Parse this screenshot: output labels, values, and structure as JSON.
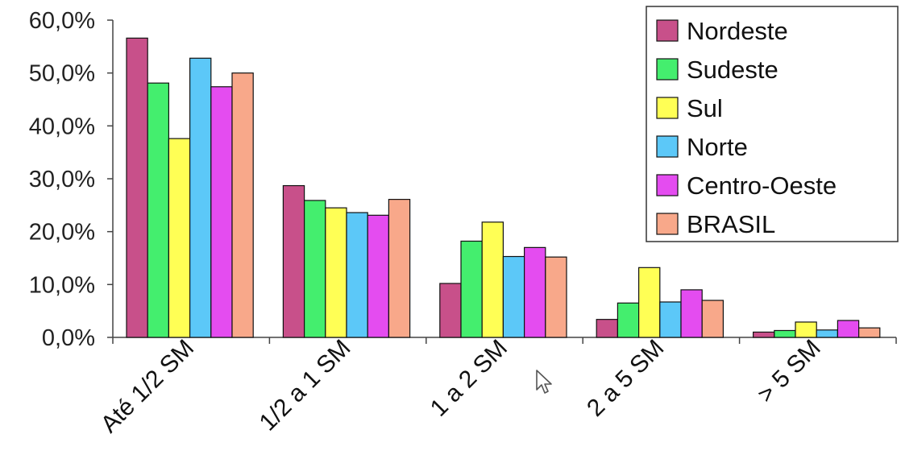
{
  "chart_data": {
    "type": "bar",
    "categories": [
      "Até 1/2 SM",
      "1/2 a 1 SM",
      "1 a 2 SM",
      "2 a 5 SM",
      "> 5 SM"
    ],
    "series": [
      {
        "name": "Nordeste",
        "color": "#c8508a",
        "values": [
          56.6,
          28.7,
          10.2,
          3.4,
          1.0
        ]
      },
      {
        "name": "Sudeste",
        "color": "#44ee6e",
        "values": [
          48.1,
          25.9,
          18.2,
          6.5,
          1.3
        ]
      },
      {
        "name": "Sul",
        "color": "#ffff55",
        "values": [
          37.6,
          24.5,
          21.8,
          13.2,
          2.9
        ]
      },
      {
        "name": "Norte",
        "color": "#5cc8f8",
        "values": [
          52.8,
          23.6,
          15.3,
          6.7,
          1.4
        ]
      },
      {
        "name": "Centro-Oeste",
        "color": "#e44cf0",
        "values": [
          47.4,
          23.1,
          17.0,
          9.0,
          3.2
        ]
      },
      {
        "name": "BRASIL",
        "color": "#f8a88a",
        "values": [
          50.0,
          26.1,
          15.2,
          7.0,
          1.8
        ]
      }
    ],
    "y_ticks": [
      "0,0%",
      "10,0%",
      "20,0%",
      "30,0%",
      "40,0%",
      "50,0%",
      "60,0%"
    ],
    "ylim": [
      0,
      60
    ],
    "title": "",
    "xlabel": "",
    "ylabel": "",
    "grid": false,
    "legend_position": "top-right"
  },
  "cursor_icon": "mouse-pointer-icon"
}
